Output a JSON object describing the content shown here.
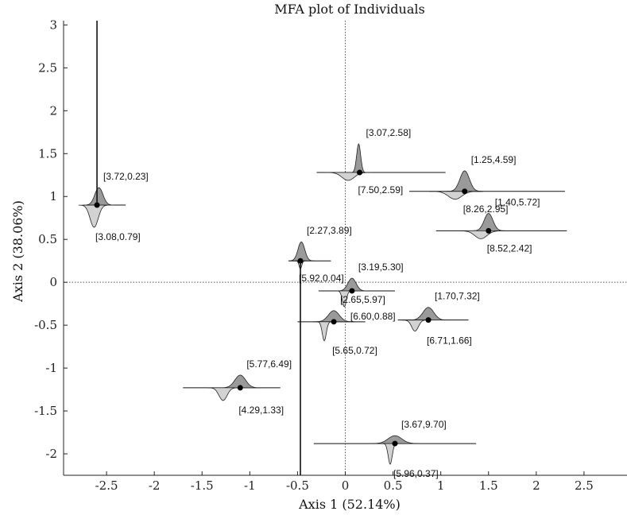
{
  "chart_data": {
    "type": "scatter",
    "title": "MFA plot of Individuals",
    "xlabel": "Axis 1 (52.14%)",
    "ylabel": "Axis 2 (38.06%)",
    "xlim": [
      -2.95,
      2.95
    ],
    "ylim": [
      -2.25,
      3.05
    ],
    "x_ticks": [
      "-2.5",
      "-2",
      "-1.5",
      "-1",
      "-0.5",
      "0",
      "0.5",
      "1",
      "1.5",
      "2",
      "2.5"
    ],
    "y_ticks": [
      "3",
      "2.5",
      "2",
      "1.5",
      "1",
      "0.5",
      "0",
      "-0.5",
      "-1",
      "-1.5",
      "-2"
    ],
    "grid": false,
    "reference_lines": {
      "x": 0,
      "y": 0,
      "style": "dotted"
    },
    "colors": {
      "upper_density": "#9a9a9a",
      "lower_density": "#d2d2d2",
      "outline": "#222222",
      "point": "#000000"
    },
    "points": [
      {
        "x": -2.6,
        "y": 0.9,
        "upper_label": "[3.72,0.23]",
        "lower_label": "[3.08,0.79]"
      },
      {
        "x": 0.15,
        "y": 1.28,
        "upper_label": "[3.07,2.58]",
        "lower_label": "[7.50,2.59]"
      },
      {
        "x": 1.25,
        "y": 1.06,
        "upper_label": "[1.25,4.59]",
        "lower_label": "[8.26,2.95]"
      },
      {
        "x": 1.5,
        "y": 0.6,
        "upper_label": "[1.40,5.72]",
        "lower_label": "[8.52,2.42]"
      },
      {
        "x": -0.47,
        "y": 0.25,
        "upper_label": "[2.27,3.89]",
        "lower_label": "[5.92,0.04]"
      },
      {
        "x": 0.07,
        "y": -0.1,
        "upper_label": "[3.19,5.30]",
        "lower_label": "[6.60,0.88]"
      },
      {
        "x": -0.12,
        "y": -0.46,
        "upper_label": "[2.65,5.97]",
        "lower_label": "[5.65,0.72]"
      },
      {
        "x": 0.87,
        "y": -0.44,
        "upper_label": "[1.70,7.32]",
        "lower_label": "[6.71,1.66]"
      },
      {
        "x": -1.1,
        "y": -1.23,
        "upper_label": "[5.77,6.49]",
        "lower_label": "[4.29,1.33]"
      },
      {
        "x": 0.52,
        "y": -1.88,
        "upper_label": "[3.67,9.70]",
        "lower_label": "[5.96,0.37]"
      }
    ]
  }
}
